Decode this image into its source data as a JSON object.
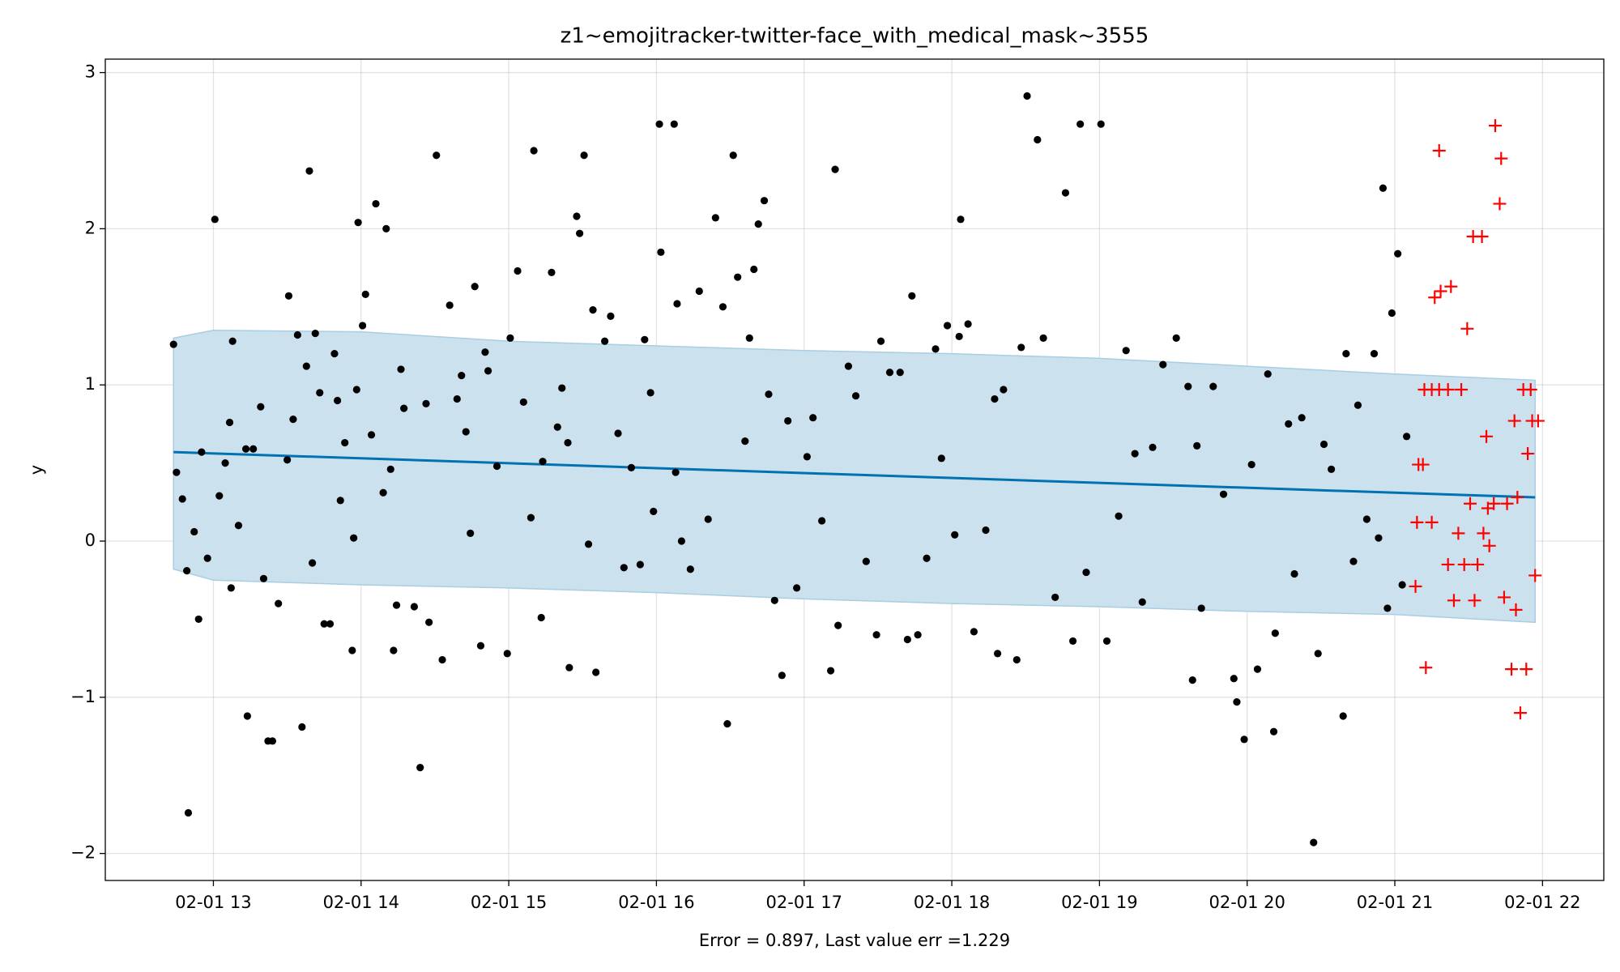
{
  "chart_data": {
    "type": "scatter",
    "title": "z1~emojitracker-twitter-face_with_medical_mask~3555",
    "xlabel": "Error = 0.897, Last value err =1.229",
    "ylabel": "y",
    "xlim": [
      12.268,
      22.415
    ],
    "ylim": [
      -2.173,
      3.086
    ],
    "xticks": [
      {
        "value": 13,
        "label": "02-01 13"
      },
      {
        "value": 14,
        "label": "02-01 14"
      },
      {
        "value": 15,
        "label": "02-01 15"
      },
      {
        "value": 16,
        "label": "02-01 16"
      },
      {
        "value": 17,
        "label": "02-01 17"
      },
      {
        "value": 18,
        "label": "02-01 18"
      },
      {
        "value": 19,
        "label": "02-01 19"
      },
      {
        "value": 20,
        "label": "02-01 20"
      },
      {
        "value": 21,
        "label": "02-01 21"
      },
      {
        "value": 22,
        "label": "02-01 22"
      }
    ],
    "yticks": [
      {
        "value": -2,
        "label": "−2"
      },
      {
        "value": -1,
        "label": "−1"
      },
      0,
      1,
      2,
      3
    ],
    "grid": true,
    "band": {
      "color": "#cce1ee",
      "edge_color": "#a9cde3",
      "x": [
        12.73,
        13,
        14,
        15,
        16,
        17,
        18,
        19,
        20,
        21,
        21.95
      ],
      "upper": [
        1.3,
        1.35,
        1.34,
        1.28,
        1.25,
        1.22,
        1.2,
        1.17,
        1.12,
        1.07,
        1.03
      ],
      "lower": [
        -0.18,
        -0.25,
        -0.28,
        -0.3,
        -0.33,
        -0.37,
        -0.4,
        -0.42,
        -0.45,
        -0.47,
        -0.52
      ]
    },
    "series": [
      {
        "kind": "line",
        "color": "#0072b2",
        "x": [
          12.73,
          21.95
        ],
        "values": [
          0.57,
          0.28
        ]
      },
      {
        "kind": "scatter",
        "marker": "dot",
        "color": "#000000",
        "x": [
          12.73,
          12.75,
          12.79,
          12.83,
          12.82,
          12.87,
          12.9,
          12.92,
          12.96,
          13.01,
          13.04,
          13.08,
          13.11,
          13.12,
          13.13,
          13.17,
          13.22,
          13.23,
          13.27,
          13.32,
          13.34,
          13.37,
          13.4,
          13.44,
          13.5,
          13.51,
          13.54,
          13.57,
          13.6,
          13.63,
          13.65,
          13.67,
          13.69,
          13.72,
          13.75,
          13.79,
          13.82,
          13.84,
          13.86,
          13.89,
          13.94,
          13.95,
          13.97,
          13.98,
          14.01,
          14.03,
          14.07,
          14.1,
          14.15,
          14.17,
          14.2,
          14.22,
          14.24,
          14.27,
          14.29,
          14.36,
          14.4,
          14.44,
          14.46,
          14.51,
          14.55,
          14.6,
          14.65,
          14.68,
          14.71,
          14.74,
          14.77,
          14.81,
          14.84,
          14.86,
          14.92,
          14.99,
          15.01,
          15.06,
          15.1,
          15.15,
          15.17,
          15.22,
          15.23,
          15.29,
          15.33,
          15.36,
          15.4,
          15.41,
          15.46,
          15.48,
          15.51,
          15.54,
          15.57,
          15.59,
          15.65,
          15.69,
          15.74,
          15.78,
          15.83,
          15.89,
          15.92,
          15.96,
          15.98,
          16.02,
          16.03,
          16.12,
          16.13,
          16.14,
          16.17,
          16.23,
          16.29,
          16.35,
          16.4,
          16.45,
          16.48,
          16.52,
          16.55,
          16.6,
          16.63,
          16.66,
          16.69,
          16.73,
          16.76,
          16.8,
          16.85,
          16.89,
          16.95,
          17.02,
          17.06,
          17.12,
          17.18,
          17.21,
          17.23,
          17.3,
          17.35,
          17.42,
          17.49,
          17.52,
          17.58,
          17.65,
          17.7,
          17.73,
          17.77,
          17.83,
          17.89,
          17.93,
          17.97,
          18.02,
          18.05,
          18.06,
          18.11,
          18.15,
          18.23,
          18.29,
          18.31,
          18.35,
          18.44,
          18.47,
          18.51,
          18.58,
          18.62,
          18.7,
          18.77,
          18.82,
          18.87,
          18.91,
          19.01,
          19.05,
          19.13,
          19.18,
          19.24,
          19.29,
          19.36,
          19.43,
          19.52,
          19.6,
          19.63,
          19.66,
          19.69,
          19.77,
          19.84,
          19.91,
          19.93,
          19.98,
          20.03,
          20.07,
          20.14,
          20.18,
          20.19,
          20.28,
          20.32,
          20.37,
          20.45,
          20.48,
          20.52,
          20.57,
          20.65,
          20.67,
          20.72,
          20.75,
          20.81,
          20.86,
          20.89,
          20.92,
          20.95,
          20.98,
          21.02,
          21.05,
          21.08
        ],
        "values": [
          1.26,
          0.44,
          0.27,
          -1.74,
          -0.19,
          0.06,
          -0.5,
          0.57,
          -0.11,
          2.06,
          0.29,
          0.5,
          0.76,
          -0.3,
          1.28,
          0.1,
          0.59,
          -1.12,
          0.59,
          0.86,
          -0.24,
          -1.28,
          -1.28,
          -0.4,
          0.52,
          1.57,
          0.78,
          1.32,
          -1.19,
          1.12,
          2.37,
          -0.14,
          1.33,
          0.95,
          -0.53,
          -0.53,
          1.2,
          0.9,
          0.26,
          0.63,
          -0.7,
          0.02,
          0.97,
          2.04,
          1.38,
          1.58,
          0.68,
          2.16,
          0.31,
          2,
          0.46,
          -0.7,
          -0.41,
          1.1,
          0.85,
          -0.42,
          -1.45,
          0.88,
          -0.52,
          2.47,
          -0.76,
          1.51,
          0.91,
          1.06,
          0.7,
          0.05,
          1.63,
          -0.67,
          1.21,
          1.09,
          0.48,
          -0.72,
          1.3,
          1.73,
          0.89,
          0.15,
          2.5,
          -0.49,
          0.51,
          1.72,
          0.73,
          0.98,
          0.63,
          -0.81,
          2.08,
          1.97,
          2.47,
          -0.02,
          1.48,
          -0.84,
          1.28,
          1.44,
          0.69,
          -0.17,
          0.47,
          -0.15,
          1.29,
          0.95,
          0.19,
          2.67,
          1.85,
          2.67,
          0.44,
          1.52,
          0,
          -0.18,
          1.6,
          0.14,
          2.07,
          1.5,
          -1.17,
          2.47,
          1.69,
          0.64,
          1.3,
          1.74,
          2.03,
          2.18,
          0.94,
          -0.38,
          -0.86,
          0.77,
          -0.3,
          0.54,
          0.79,
          0.13,
          -0.83,
          2.38,
          -0.54,
          1.12,
          0.93,
          -0.13,
          -0.6,
          1.28,
          1.08,
          1.08,
          -0.63,
          1.57,
          -0.6,
          -0.11,
          1.23,
          0.53,
          1.38,
          0.04,
          1.31,
          2.06,
          1.39,
          -0.58,
          0.07,
          0.91,
          -0.72,
          0.97,
          -0.76,
          1.24,
          2.85,
          2.57,
          1.3,
          -0.36,
          2.23,
          -0.64,
          2.67,
          -0.2,
          2.67,
          -0.64,
          0.16,
          1.22,
          0.56,
          -0.39,
          0.6,
          1.13,
          1.3,
          0.99,
          -0.89,
          0.61,
          -0.43,
          0.99,
          0.3,
          -0.88,
          -1.03,
          -1.27,
          0.49,
          -0.82,
          1.07,
          -1.22,
          -0.59,
          0.75,
          -0.21,
          0.79,
          -1.93,
          -0.72,
          0.62,
          0.46,
          -1.12,
          1.2,
          -0.13,
          0.87,
          0.14,
          1.2,
          0.02,
          2.26,
          -0.43,
          1.46,
          1.84,
          -0.28,
          0.67
        ]
      },
      {
        "kind": "scatter",
        "marker": "plus",
        "color": "#ff0000",
        "x": [
          21.14,
          21.15,
          21.16,
          21.19,
          21.2,
          21.21,
          21.25,
          21.25,
          21.27,
          21.3,
          21.3,
          21.31,
          21.36,
          21.36,
          21.38,
          21.4,
          21.43,
          21.45,
          21.47,
          21.49,
          21.51,
          21.53,
          21.54,
          21.56,
          21.59,
          21.6,
          21.62,
          21.63,
          21.64,
          21.67,
          21.68,
          21.71,
          21.72,
          21.74,
          21.76,
          21.79,
          21.81,
          21.82,
          21.83,
          21.85,
          21.87,
          21.89,
          21.9,
          21.92,
          21.93,
          21.95,
          21.97
        ],
        "values": [
          -0.29,
          0.12,
          0.49,
          0.49,
          0.97,
          -0.81,
          0.12,
          0.97,
          1.56,
          2.5,
          0.97,
          1.6,
          0.97,
          -0.15,
          1.63,
          -0.38,
          0.05,
          0.97,
          -0.15,
          1.36,
          0.24,
          1.95,
          -0.38,
          -0.15,
          1.95,
          0.05,
          0.67,
          0.21,
          -0.03,
          0.24,
          2.66,
          2.16,
          2.45,
          -0.36,
          0.24,
          -0.82,
          0.77,
          -0.44,
          0.28,
          -1.1,
          0.97,
          -0.82,
          0.56,
          0.97,
          0.77,
          -0.22,
          0.77
        ]
      }
    ]
  }
}
